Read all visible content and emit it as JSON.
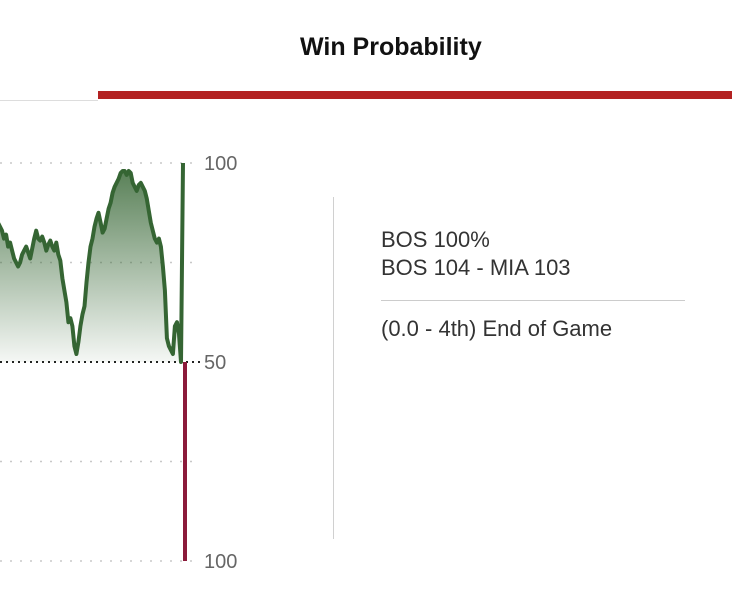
{
  "header": {
    "title": "Win Probability"
  },
  "colors": {
    "home": "#356533",
    "away": "#8b1a3a",
    "accent": "#b32222"
  },
  "chart_data": {
    "type": "area",
    "title": "Win Probability",
    "y_ticks": [
      "100",
      "50",
      "100"
    ],
    "ylim": [
      -100,
      100
    ],
    "grid": true,
    "series": [
      {
        "values": [
          74,
          70,
          68,
          66,
          62,
          64,
          58,
          60,
          56,
          52,
          50,
          48,
          50,
          54,
          56,
          58,
          55,
          52,
          57,
          62,
          66,
          62,
          61,
          63,
          60,
          56,
          59,
          61,
          58,
          56,
          60,
          54,
          51,
          42,
          36,
          30,
          20,
          22,
          18,
          8,
          4,
          10,
          18,
          24,
          28,
          40,
          50,
          58,
          62,
          68,
          72,
          75,
          70,
          65,
          67,
          72,
          77,
          80,
          85,
          88,
          90,
          92,
          95,
          96,
          96,
          94,
          96,
          95,
          90,
          88,
          86,
          89,
          90,
          88,
          86,
          82,
          76,
          70,
          66,
          62,
          60,
          62,
          58,
          48,
          36,
          12,
          8,
          6,
          4,
          18,
          20,
          14,
          0,
          100,
          -100
        ]
      }
    ]
  },
  "info": {
    "line1": "BOS 100%",
    "line2": "BOS 104 - MIA 103",
    "line3": "(0.0 - 4th) End of Game"
  }
}
